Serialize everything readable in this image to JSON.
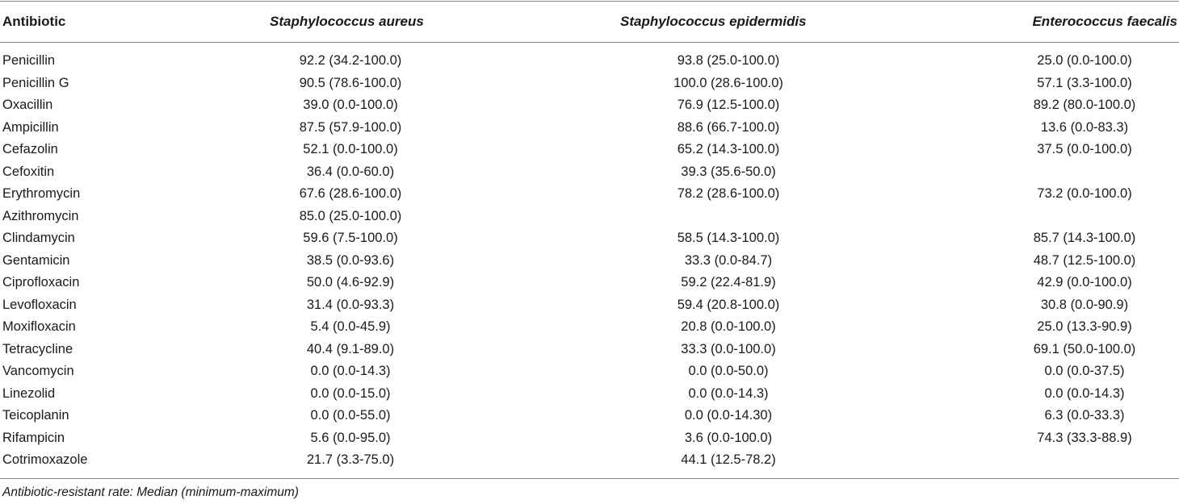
{
  "table": {
    "headers": {
      "antibiotic": "Antibiotic",
      "s_aureus": "Staphylococcus aureus",
      "s_epidermidis": "Staphylococcus epidermidis",
      "e_faecalis": "Enterococcus faecalis"
    },
    "rows": [
      {
        "antibiotic": "Penicillin",
        "s_aureus": "92.2 (34.2-100.0)",
        "s_epidermidis": "93.8 (25.0-100.0)",
        "e_faecalis": "25.0 (0.0-100.0)"
      },
      {
        "antibiotic": "Penicillin G",
        "s_aureus": "90.5 (78.6-100.0)",
        "s_epidermidis": "100.0 (28.6-100.0)",
        "e_faecalis": "57.1 (3.3-100.0)"
      },
      {
        "antibiotic": "Oxacillin",
        "s_aureus": "39.0 (0.0-100.0)",
        "s_epidermidis": "76.9 (12.5-100.0)",
        "e_faecalis": "89.2 (80.0-100.0)"
      },
      {
        "antibiotic": "Ampicillin",
        "s_aureus": "87.5 (57.9-100.0)",
        "s_epidermidis": "88.6 (66.7-100.0)",
        "e_faecalis": "13.6 (0.0-83.3)"
      },
      {
        "antibiotic": "Cefazolin",
        "s_aureus": "52.1 (0.0-100.0)",
        "s_epidermidis": "65.2 (14.3-100.0)",
        "e_faecalis": "37.5 (0.0-100.0)"
      },
      {
        "antibiotic": "Cefoxitin",
        "s_aureus": "36.4 (0.0-60.0)",
        "s_epidermidis": "39.3 (35.6-50.0)",
        "e_faecalis": ""
      },
      {
        "antibiotic": "Erythromycin",
        "s_aureus": "67.6 (28.6-100.0)",
        "s_epidermidis": "78.2 (28.6-100.0)",
        "e_faecalis": "73.2 (0.0-100.0)"
      },
      {
        "antibiotic": "Azithromycin",
        "s_aureus": "85.0 (25.0-100.0)",
        "s_epidermidis": "",
        "e_faecalis": ""
      },
      {
        "antibiotic": "Clindamycin",
        "s_aureus": "59.6 (7.5-100.0)",
        "s_epidermidis": "58.5 (14.3-100.0)",
        "e_faecalis": "85.7 (14.3-100.0)"
      },
      {
        "antibiotic": "Gentamicin",
        "s_aureus": "38.5 (0.0-93.6)",
        "s_epidermidis": "33.3 (0.0-84.7)",
        "e_faecalis": "48.7 (12.5-100.0)"
      },
      {
        "antibiotic": "Ciprofloxacin",
        "s_aureus": "50.0 (4.6-92.9)",
        "s_epidermidis": "59.2 (22.4-81.9)",
        "e_faecalis": "42.9 (0.0-100.0)"
      },
      {
        "antibiotic": "Levofloxacin",
        "s_aureus": "31.4 (0.0-93.3)",
        "s_epidermidis": "59.4 (20.8-100.0)",
        "e_faecalis": "30.8 (0.0-90.9)"
      },
      {
        "antibiotic": "Moxifloxacin",
        "s_aureus": "5.4 (0.0-45.9)",
        "s_epidermidis": "20.8 (0.0-100.0)",
        "e_faecalis": "25.0 (13.3-90.9)"
      },
      {
        "antibiotic": "Tetracycline",
        "s_aureus": "40.4 (9.1-89.0)",
        "s_epidermidis": "33.3 (0.0-100.0)",
        "e_faecalis": "69.1 (50.0-100.0)"
      },
      {
        "antibiotic": "Vancomycin",
        "s_aureus": "0.0 (0.0-14.3)",
        "s_epidermidis": "0.0 (0.0-50.0)",
        "e_faecalis": "0.0 (0.0-37.5)"
      },
      {
        "antibiotic": "Linezolid",
        "s_aureus": "0.0 (0.0-15.0)",
        "s_epidermidis": "0.0 (0.0-14.3)",
        "e_faecalis": "0.0 (0.0-14.3)"
      },
      {
        "antibiotic": "Teicoplanin",
        "s_aureus": "0.0 (0.0-55.0)",
        "s_epidermidis": "0.0 (0.0-14.30)",
        "e_faecalis": "6.3 (0.0-33.3)"
      },
      {
        "antibiotic": "Rifampicin",
        "s_aureus": "5.6 (0.0-95.0)",
        "s_epidermidis": "3.6 (0.0-100.0)",
        "e_faecalis": "74.3 (33.3-88.9)"
      },
      {
        "antibiotic": "Cotrimoxazole",
        "s_aureus": "21.7 (3.3-75.0)",
        "s_epidermidis": "44.1 (12.5-78.2)",
        "e_faecalis": ""
      }
    ],
    "footnote": "Antibiotic-resistant rate: Median (minimum-maximum)"
  }
}
